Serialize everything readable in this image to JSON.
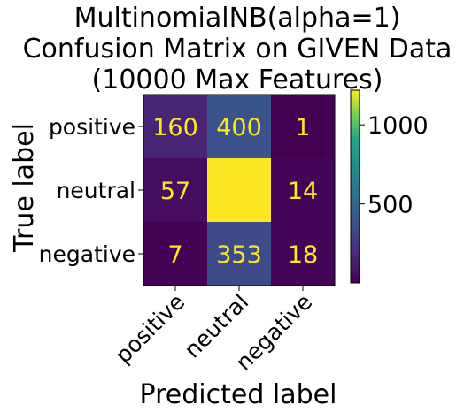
{
  "chart_data": {
    "type": "heatmap",
    "title": "MultinomialNB(alpha=1)\nConfusion Matrix on GIVEN Data\n(10000 Max Features)",
    "title_lines": [
      "MultinomialNB(alpha=1)",
      "Confusion Matrix on GIVEN Data",
      "(10000 Max Features)"
    ],
    "xlabel": "Predicted label",
    "ylabel": "True label",
    "x_categories": [
      "positive",
      "neutral",
      "negative"
    ],
    "y_categories": [
      "positive",
      "neutral",
      "negative"
    ],
    "values": [
      [
        160,
        400,
        1
      ],
      [
        57,
        1219,
        14
      ],
      [
        7,
        353,
        18
      ]
    ],
    "colormap": "viridis",
    "color_range": [
      1,
      1219
    ],
    "colorbar_ticks": [
      500,
      1000
    ],
    "cell_label_color": "#fde725",
    "grid": false
  }
}
